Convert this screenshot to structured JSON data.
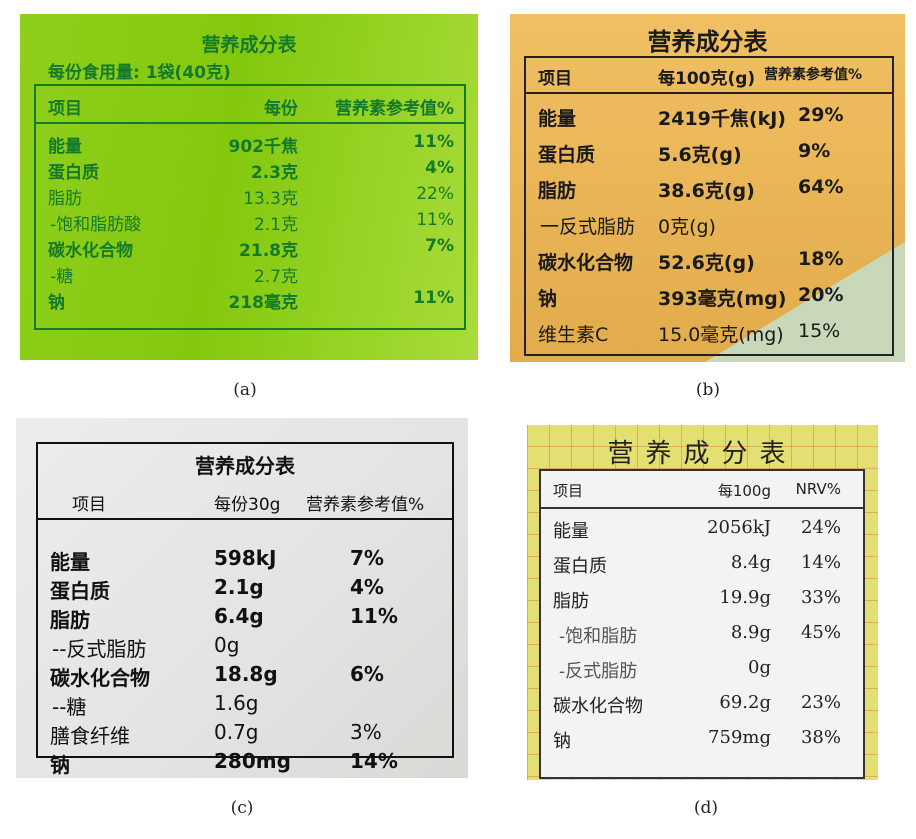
{
  "panels": [
    {
      "id": "pa",
      "caption": "(a)",
      "title": "营养成分表",
      "serving": "每份食用量: 1袋(40克)",
      "headers": [
        "项目",
        "每份",
        "营养素参考值%"
      ],
      "row_spacing": 26,
      "row_top": 46,
      "rows": [
        {
          "item": "能量",
          "amount": "902千焦",
          "nrv": "11%",
          "bold": true
        },
        {
          "item": "蛋白质",
          "amount": "2.3克",
          "nrv": "4%",
          "bold": true
        },
        {
          "item": "脂肪",
          "amount": "13.3克",
          "nrv": "22%"
        },
        {
          "item": "-饱和脂肪酸",
          "amount": "2.1克",
          "nrv": "11%",
          "indent": true
        },
        {
          "item": "碳水化合物",
          "amount": "21.8克",
          "nrv": "7%",
          "bold": true
        },
        {
          "item": "-糖",
          "amount": "2.7克",
          "nrv": "",
          "indent": true
        },
        {
          "item": "钠",
          "amount": "218毫克",
          "nrv": "11%",
          "bold": true
        }
      ],
      "colors": {
        "background": "#8fcf1c",
        "text": "#137a2a"
      }
    },
    {
      "id": "pb",
      "caption": "(b)",
      "title": "营养成分表",
      "headers": [
        "项目",
        "每100克(g)",
        "营养素参考值%"
      ],
      "row_spacing": 36,
      "row_top": 46,
      "rows": [
        {
          "item": "能量",
          "amount": "2419千焦(kJ)",
          "nrv": "29%",
          "bold": true
        },
        {
          "item": "蛋白质",
          "amount": "5.6克(g)",
          "nrv": "9%",
          "bold": true
        },
        {
          "item": "脂肪",
          "amount": "38.6克(g)",
          "nrv": "64%",
          "bold": true
        },
        {
          "item": "一反式脂肪",
          "amount": "0克(g)",
          "nrv": "",
          "indent": true
        },
        {
          "item": "碳水化合物",
          "amount": "52.6克(g)",
          "nrv": "18%",
          "bold": true
        },
        {
          "item": "钠",
          "amount": "393毫克(mg)",
          "nrv": "20%",
          "bold": true
        },
        {
          "item": "维生素C",
          "amount": "15.0毫克(mg)",
          "nrv": "15%"
        }
      ],
      "colors": {
        "background": "#e8b354",
        "text": "#1a1a1a"
      }
    },
    {
      "id": "pc",
      "caption": "(c)",
      "title": "营养成分表",
      "headers": [
        "项目",
        "每份30g",
        "营养素参考值%"
      ],
      "row_spacing": 29,
      "row_top": 102,
      "rows": [
        {
          "item": "能量",
          "amount": "598kJ",
          "nrv": "7%",
          "bold": true
        },
        {
          "item": "蛋白质",
          "amount": "2.1g",
          "nrv": "4%",
          "bold": true
        },
        {
          "item": "脂肪",
          "amount": "6.4g",
          "nrv": "11%",
          "bold": true
        },
        {
          "item": "--反式脂肪",
          "amount": "0g",
          "nrv": "",
          "indent": true
        },
        {
          "item": "碳水化合物",
          "amount": "18.8g",
          "nrv": "6%",
          "bold": true
        },
        {
          "item": "--糖",
          "amount": "1.6g",
          "nrv": "",
          "indent": true
        },
        {
          "item": "膳食纤维",
          "amount": "0.7g",
          "nrv": "3%"
        },
        {
          "item": "钠",
          "amount": "280mg",
          "nrv": "14%",
          "bold": true
        }
      ],
      "colors": {
        "background": "#e6e6e4",
        "text": "#111111"
      }
    },
    {
      "id": "pd",
      "caption": "(d)",
      "title": "营养成分表",
      "headers": [
        "项目",
        "每100g",
        "NRV%"
      ],
      "row_spacing": 35,
      "row_top": 46,
      "rows": [
        {
          "item": "能量",
          "amount": "2056kJ",
          "nrv": "24%"
        },
        {
          "item": "蛋白质",
          "amount": "8.4g",
          "nrv": "14%"
        },
        {
          "item": "脂肪",
          "amount": "19.9g",
          "nrv": "33%"
        },
        {
          "item": "-饱和脂肪",
          "amount": "8.9g",
          "nrv": "45%",
          "indent": true
        },
        {
          "item": "-反式脂肪",
          "amount": "0g",
          "nrv": "",
          "indent": true
        },
        {
          "item": "碳水化合物",
          "amount": "69.2g",
          "nrv": "23%"
        },
        {
          "item": "钠",
          "amount": "759mg",
          "nrv": "38%"
        }
      ],
      "colors": {
        "background": "#e4df72",
        "text": "#222222"
      }
    }
  ]
}
